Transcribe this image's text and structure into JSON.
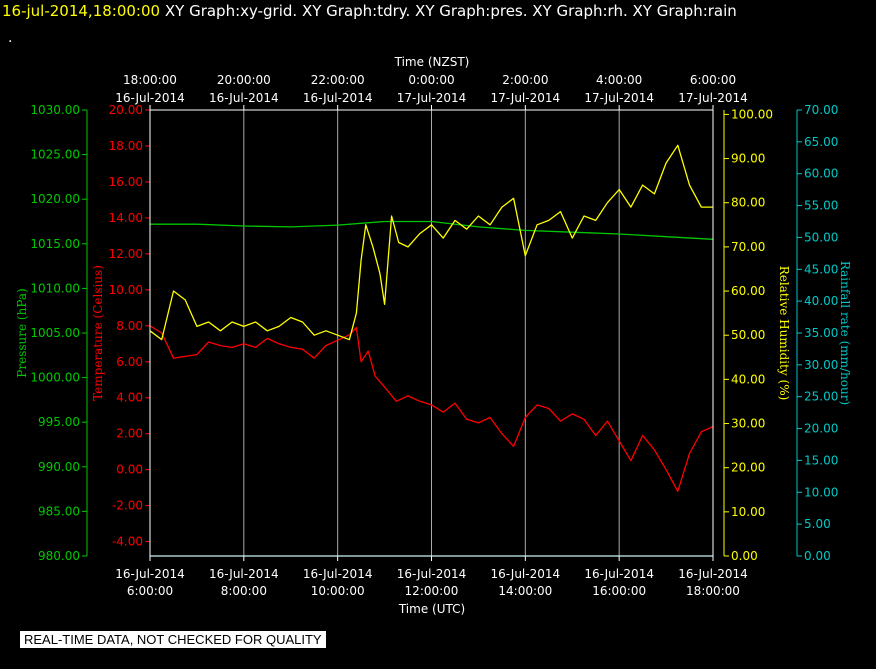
{
  "header": {
    "timestamp": "16-jul-2014,18:00:00",
    "graphs": "XY Graph:xy-grid.  XY Graph:tdry.  XY Graph:pres.  XY Graph:rh.  XY Graph:rain",
    "dot": "."
  },
  "footer_note": "REAL-TIME DATA, NOT CHECKED FOR QUALITY",
  "colors": {
    "background": "#000000",
    "axis_frame": "#ffffff",
    "grid": "#aaaaaa",
    "temperature": "#ff0000",
    "pressure": "#00c800",
    "humidity": "#ffff00",
    "rain": "#00c8c8"
  },
  "chart_data": {
    "type": "line",
    "top_axis_label": "Time (NZST)",
    "bottom_axis_label": "Time (UTC)",
    "top_ticks": [
      {
        "time": "18:00:00",
        "date": "16-Jul-2014"
      },
      {
        "time": "20:00:00",
        "date": "16-Jul-2014"
      },
      {
        "time": "22:00:00",
        "date": "16-Jul-2014"
      },
      {
        "time": "0:00:00",
        "date": "17-Jul-2014"
      },
      {
        "time": "2:00:00",
        "date": "17-Jul-2014"
      },
      {
        "time": "4:00:00",
        "date": "17-Jul-2014"
      },
      {
        "time": "6:00:00",
        "date": "17-Jul-2014"
      }
    ],
    "bottom_ticks": [
      {
        "date": "16-Jul-2014",
        "time": "6:00:00"
      },
      {
        "date": "16-Jul-2014",
        "time": "8:00:00"
      },
      {
        "date": "16-Jul-2014",
        "time": "10:00:00"
      },
      {
        "date": "16-Jul-2014",
        "time": "12:00:00"
      },
      {
        "date": "16-Jul-2014",
        "time": "14:00:00"
      },
      {
        "date": "16-Jul-2014",
        "time": "16:00:00"
      },
      {
        "date": "16-Jul-2014",
        "time": "18:00:00"
      }
    ],
    "xlim_utc_hours": [
      6,
      18
    ],
    "grid": true,
    "axes": {
      "pressure": {
        "label": "Pressure (hPa)",
        "min": 980,
        "max": 1030,
        "ticks": [
          "1030.00",
          "1025.00",
          "1020.00",
          "1015.00",
          "1010.00",
          "1005.00",
          "1000.00",
          "995.00",
          "990.00",
          "985.00",
          "980.00"
        ]
      },
      "temperature": {
        "label": "Temperature (Celsius)",
        "min": -4.8,
        "max": 20,
        "ticks": [
          "20.00",
          "18.00",
          "16.00",
          "14.00",
          "12.00",
          "10.00",
          "8.00",
          "6.00",
          "4.00",
          "2.00",
          "0.00",
          "-2.00",
          "-4.00"
        ]
      },
      "humidity": {
        "label": "Relative Humidity (%)",
        "min": 0,
        "max": 101,
        "ticks": [
          "100.00",
          "90.00",
          "80.00",
          "70.00",
          "60.00",
          "50.00",
          "40.00",
          "30.00",
          "20.00",
          "10.00",
          "0.00"
        ]
      },
      "rain": {
        "label": "Rainfall rate (mm/hour)",
        "min": 0,
        "max": 70,
        "ticks": [
          "70.00",
          "65.00",
          "60.00",
          "55.00",
          "50.00",
          "45.00",
          "40.00",
          "35.00",
          "30.00",
          "25.00",
          "20.00",
          "15.00",
          "10.00",
          "5.00",
          "0.00"
        ]
      }
    },
    "series": [
      {
        "name": "tdry",
        "axis": "temperature",
        "x": [
          6.0,
          6.25,
          6.5,
          6.75,
          7.0,
          7.25,
          7.5,
          7.75,
          8.0,
          8.25,
          8.5,
          8.75,
          9.0,
          9.25,
          9.5,
          9.75,
          10.0,
          10.25,
          10.4,
          10.5,
          10.65,
          10.8,
          11.0,
          11.25,
          11.5,
          11.75,
          12.0,
          12.25,
          12.5,
          12.75,
          13.0,
          13.25,
          13.5,
          13.75,
          14.0,
          14.25,
          14.5,
          14.75,
          15.0,
          15.25,
          15.5,
          15.75,
          16.0,
          16.25,
          16.5,
          16.75,
          17.0,
          17.25,
          17.5,
          17.75,
          18.0
        ],
        "y": [
          8.0,
          7.6,
          6.2,
          6.3,
          6.4,
          7.1,
          6.9,
          6.8,
          7.0,
          6.8,
          7.3,
          7.0,
          6.8,
          6.7,
          6.2,
          6.9,
          7.2,
          7.5,
          7.9,
          6.0,
          6.6,
          5.2,
          4.6,
          3.8,
          4.1,
          3.8,
          3.6,
          3.2,
          3.7,
          2.8,
          2.6,
          2.9,
          2.0,
          1.3,
          2.9,
          3.6,
          3.4,
          2.7,
          3.1,
          2.8,
          1.9,
          2.7,
          1.6,
          0.5,
          1.9,
          1.1,
          0.0,
          -1.2,
          0.9,
          2.1,
          2.4
        ]
      },
      {
        "name": "pres",
        "axis": "pressure",
        "x": [
          6.0,
          7.0,
          8.0,
          9.0,
          10.0,
          11.0,
          12.0,
          13.0,
          14.0,
          15.0,
          16.0,
          17.0,
          18.0
        ],
        "y": [
          1017.2,
          1017.2,
          1017.0,
          1016.9,
          1017.1,
          1017.5,
          1017.5,
          1016.9,
          1016.5,
          1016.3,
          1016.1,
          1015.8,
          1015.5
        ]
      },
      {
        "name": "rh",
        "axis": "humidity",
        "x": [
          6.0,
          6.25,
          6.5,
          6.75,
          7.0,
          7.25,
          7.5,
          7.75,
          8.0,
          8.25,
          8.5,
          8.75,
          9.0,
          9.25,
          9.5,
          9.75,
          10.0,
          10.25,
          10.4,
          10.5,
          10.6,
          10.75,
          10.9,
          11.0,
          11.15,
          11.3,
          11.5,
          11.75,
          12.0,
          12.25,
          12.5,
          12.75,
          13.0,
          13.25,
          13.5,
          13.75,
          14.0,
          14.25,
          14.5,
          14.75,
          15.0,
          15.25,
          15.5,
          15.75,
          16.0,
          16.25,
          16.5,
          16.75,
          17.0,
          17.25,
          17.5,
          17.75,
          18.0
        ],
        "y": [
          51,
          49,
          60,
          58,
          52,
          53,
          51,
          53,
          52,
          53,
          51,
          52,
          54,
          53,
          50,
          51,
          50,
          49,
          55,
          67,
          75,
          70,
          64,
          57,
          77,
          71,
          70,
          73,
          75,
          72,
          76,
          74,
          77,
          75,
          79,
          81,
          68,
          75,
          76,
          78,
          72,
          77,
          76,
          80,
          83,
          79,
          84,
          82,
          89,
          93,
          84,
          79,
          79
        ]
      },
      {
        "name": "rain",
        "axis": "rain",
        "x": [
          6.0,
          18.0
        ],
        "y": [
          0.0,
          0.0
        ]
      }
    ]
  }
}
